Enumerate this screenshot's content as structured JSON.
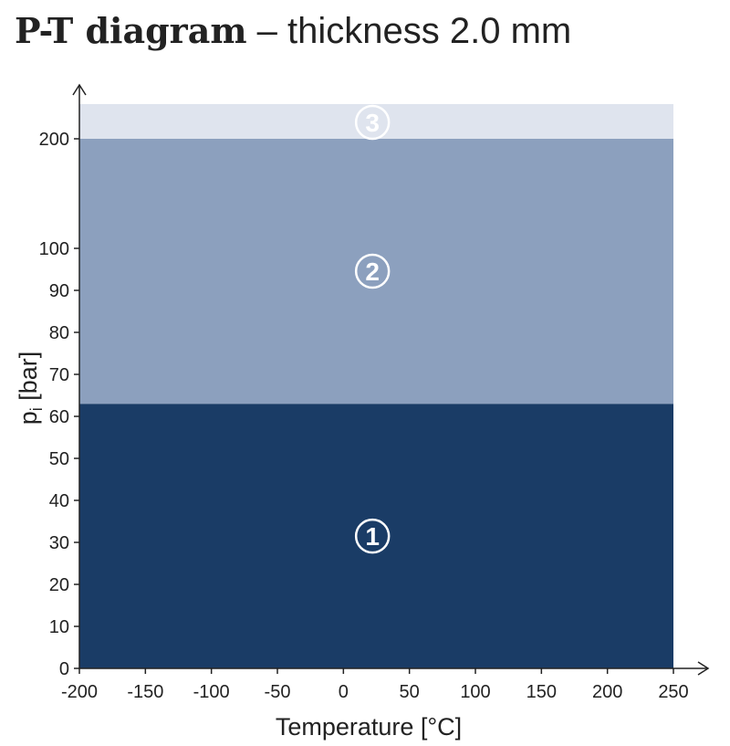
{
  "chart_data": {
    "type": "area",
    "title_bold": "P-T diagram",
    "title_rest": "– thickness 2.0 mm",
    "xlabel": "Temperature [°C]",
    "ylabel_main": "p",
    "ylabel_sub": "i",
    "ylabel_unit": " [bar]",
    "xlim": [
      -200,
      250
    ],
    "x_ticks": [
      -200,
      -150,
      -100,
      -50,
      0,
      50,
      100,
      150,
      200,
      250
    ],
    "y_ticks": [
      0,
      10,
      20,
      30,
      40,
      50,
      60,
      70,
      80,
      90,
      100,
      200
    ],
    "y_scale": "broken axis: linear 0–100, compressed 100–200",
    "grid": false,
    "zones": [
      {
        "label": "1",
        "y_from": 0,
        "y_to": 63,
        "color": "#1a3c66"
      },
      {
        "label": "2",
        "y_from": 63,
        "y_to": 200,
        "color": "#8ca0be"
      },
      {
        "label": "3",
        "y_from": 200,
        "y_to": 208,
        "color": "#dfe4ee"
      }
    ],
    "axis_color": "#222222"
  }
}
